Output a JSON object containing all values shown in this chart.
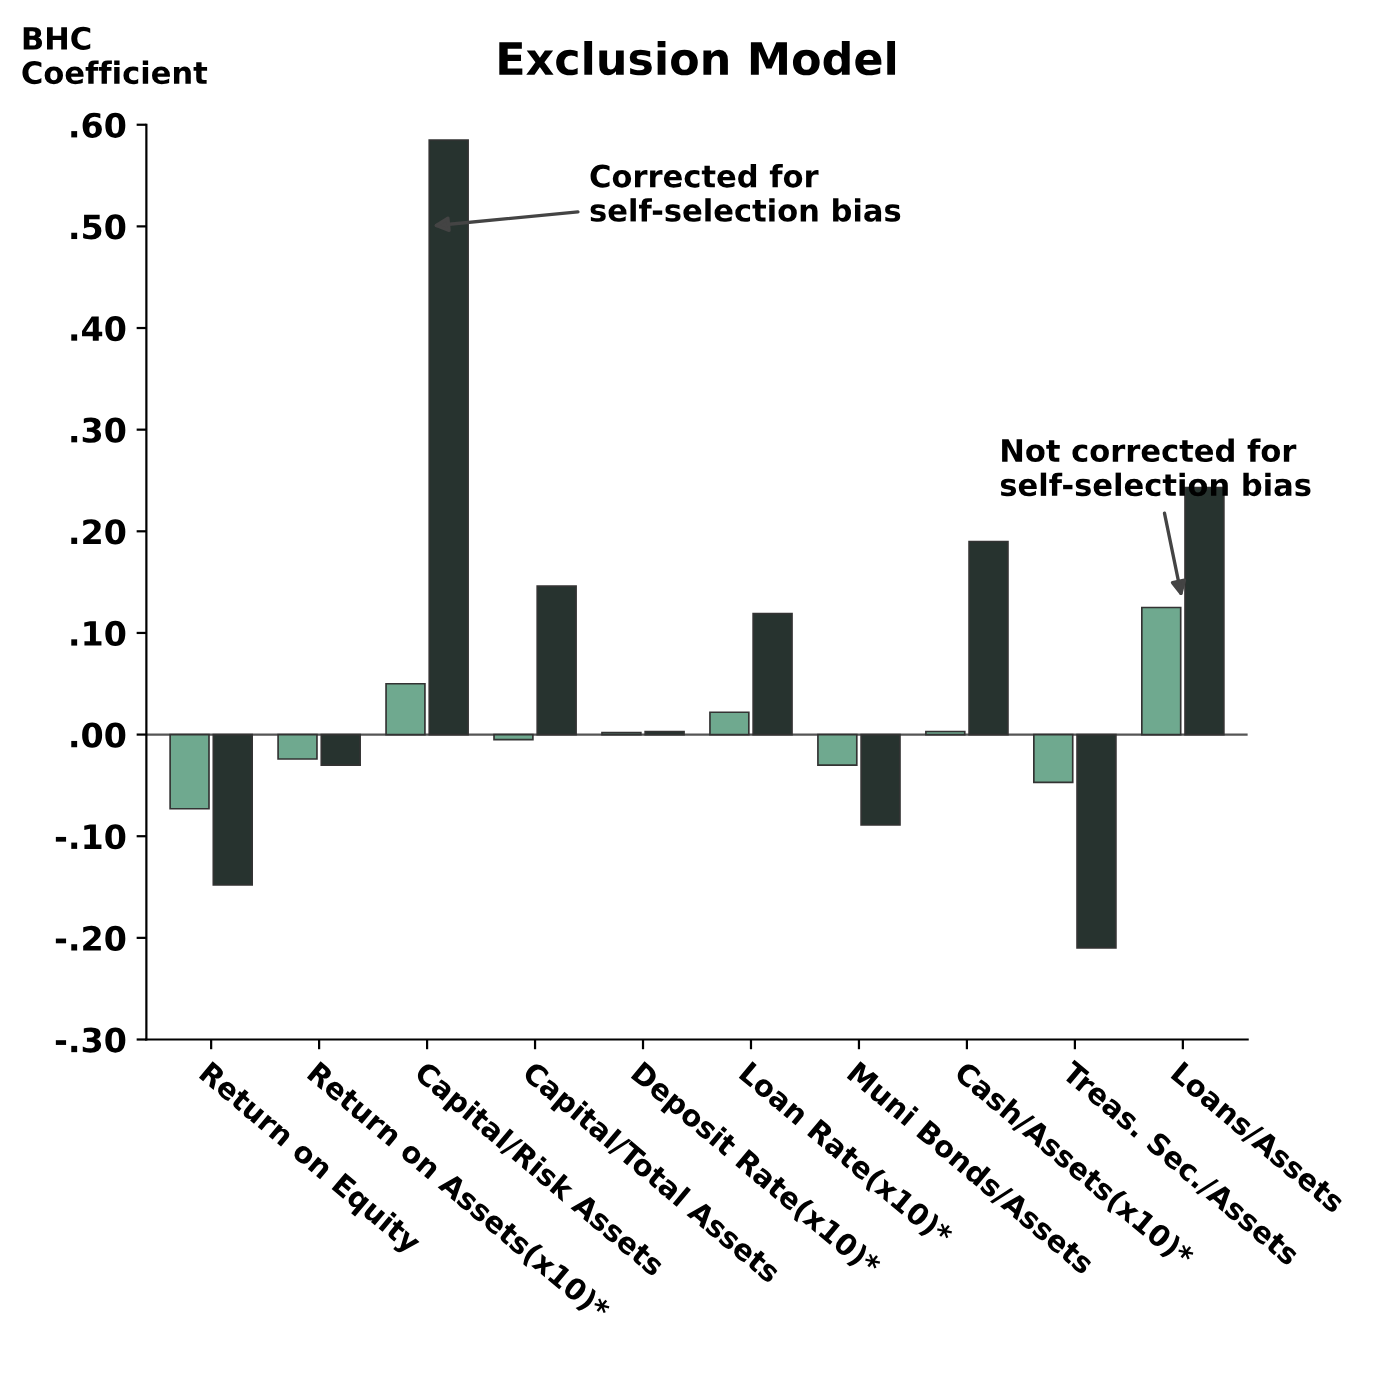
{
  "chart_data": {
    "type": "bar",
    "title": "Exclusion Model",
    "ylabel": "BHC\nCoefficient",
    "categories": [
      "Return on Equity",
      "Return on Assets(x10)*",
      "Capital/Risk Assets",
      "Capital/Total Assets",
      "Deposit Rate(x10)*",
      "Loan Rate(x10)*",
      "Muni Bonds/Assets",
      "Cash/Assets(x10)*",
      "Treas. Sec./Assets",
      "Loans/Assets"
    ],
    "series": [
      {
        "color": "#6fa98f",
        "values": [
          -0.073,
          -0.024,
          0.05,
          -0.005,
          0.002,
          0.022,
          -0.03,
          0.003,
          -0.047,
          0.125
        ]
      },
      {
        "color": "#27332f",
        "values": [
          -0.148,
          -0.03,
          0.585,
          0.146,
          0.003,
          0.119,
          -0.089,
          0.19,
          -0.21,
          0.243
        ]
      }
    ],
    "ylim": [
      -0.3,
      0.6
    ],
    "yticks": [
      {
        "value": -0.3,
        "label": "-.30"
      },
      {
        "value": -0.2,
        "label": "-.20"
      },
      {
        "value": -0.1,
        "label": "-.10"
      },
      {
        "value": 0,
        "label": ".00"
      },
      {
        "value": 0.1,
        "label": ".10"
      },
      {
        "value": 0.2,
        "label": ".20"
      },
      {
        "value": 0.3,
        "label": ".30"
      },
      {
        "value": 0.4,
        "label": ".40"
      },
      {
        "value": 0.5,
        "label": ".50"
      },
      {
        "value": 0.6,
        "label": ".60"
      }
    ],
    "ref_lines": [
      {
        "axis": "y",
        "value": 0,
        "color": "#555555"
      }
    ],
    "annotations": [
      {
        "text": "Corrected for\nself-selection bias",
        "x": "Capital/Risk Assets",
        "y": 0.5
      },
      {
        "text": "Not corrected for\nself-selection bias",
        "x": "Loans/Assets",
        "y": 0.13
      }
    ],
    "grid": false,
    "legend": false
  }
}
